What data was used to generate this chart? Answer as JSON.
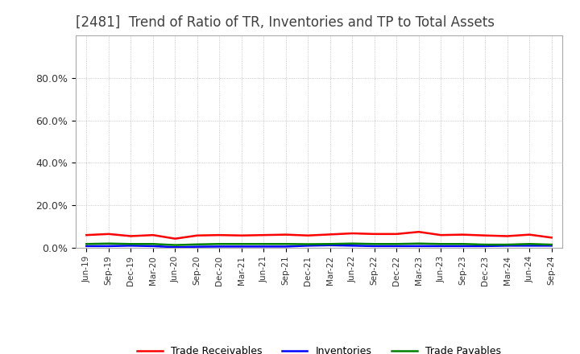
{
  "title": "[2481]  Trend of Ratio of TR, Inventories and TP to Total Assets",
  "title_fontsize": 12,
  "title_color": "#404040",
  "background_color": "#ffffff",
  "ylim": [
    0.0,
    1.0
  ],
  "yticks": [
    0.0,
    0.2,
    0.4,
    0.6,
    0.8
  ],
  "ytick_labels": [
    "0.0%",
    "20.0%",
    "40.0%",
    "60.0%",
    "80.0%"
  ],
  "dates": [
    "Jun-19",
    "Sep-19",
    "Dec-19",
    "Mar-20",
    "Jun-20",
    "Sep-20",
    "Dec-20",
    "Mar-21",
    "Jun-21",
    "Sep-21",
    "Dec-21",
    "Mar-22",
    "Jun-22",
    "Sep-22",
    "Dec-22",
    "Mar-23",
    "Jun-23",
    "Sep-23",
    "Dec-23",
    "Mar-24",
    "Jun-24",
    "Sep-24"
  ],
  "trade_receivables": [
    0.06,
    0.065,
    0.055,
    0.06,
    0.043,
    0.058,
    0.06,
    0.058,
    0.06,
    0.062,
    0.058,
    0.063,
    0.068,
    0.065,
    0.065,
    0.075,
    0.06,
    0.062,
    0.058,
    0.055,
    0.062,
    0.048
  ],
  "inventories": [
    0.008,
    0.008,
    0.01,
    0.008,
    0.003,
    0.005,
    0.006,
    0.006,
    0.006,
    0.006,
    0.01,
    0.012,
    0.01,
    0.008,
    0.008,
    0.008,
    0.008,
    0.008,
    0.008,
    0.01,
    0.01,
    0.01
  ],
  "trade_payables": [
    0.018,
    0.02,
    0.018,
    0.018,
    0.013,
    0.016,
    0.018,
    0.018,
    0.018,
    0.018,
    0.017,
    0.018,
    0.02,
    0.018,
    0.018,
    0.02,
    0.018,
    0.018,
    0.015,
    0.015,
    0.018,
    0.015
  ],
  "tr_color": "#ff0000",
  "inv_color": "#0000ff",
  "tp_color": "#008000",
  "legend_labels": [
    "Trade Receivables",
    "Inventories",
    "Trade Payables"
  ],
  "grid_color": "#aaaaaa",
  "line_width": 1.8,
  "plot_bg_color": "#ffffff"
}
